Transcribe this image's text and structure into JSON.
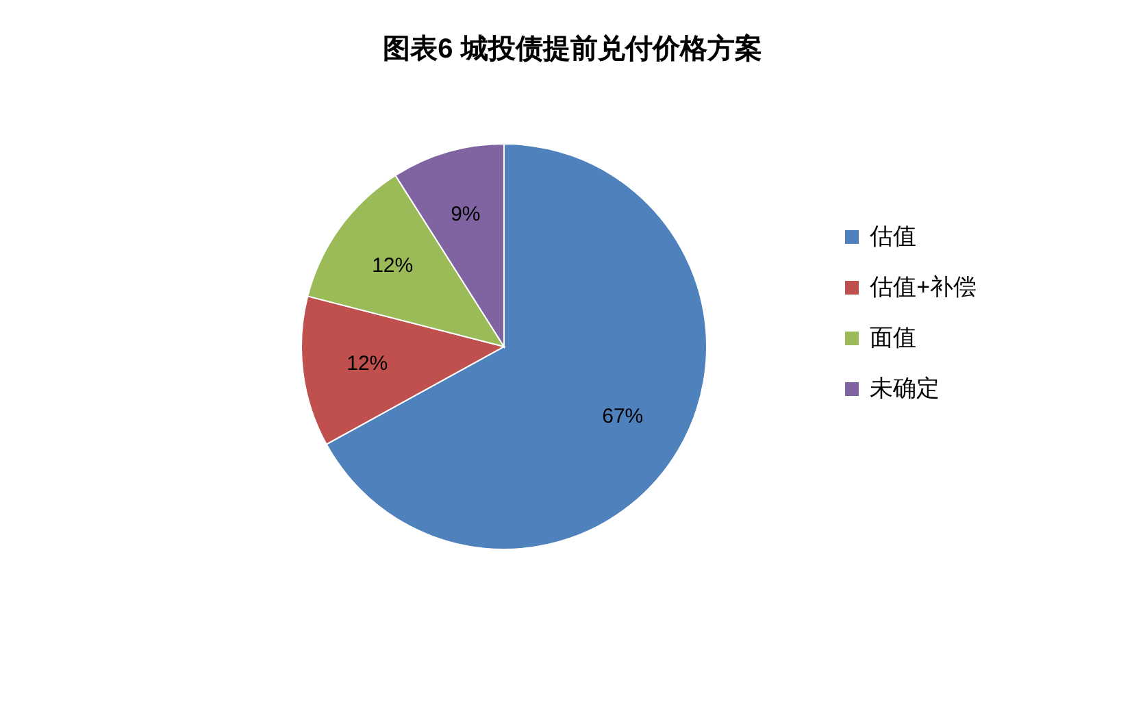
{
  "chart_data": {
    "type": "pie",
    "title": "图表6  城投债提前兑付价格方案",
    "categories": [
      "估值",
      "估值+补偿",
      "面值",
      "未确定"
    ],
    "values": [
      67,
      12,
      12,
      9
    ],
    "colors": [
      "#4f81bd",
      "#c0504d",
      "#9bbb59",
      "#8064a2"
    ],
    "value_labels": [
      "67%",
      "12%",
      "12%",
      "9%"
    ],
    "legend": "right"
  }
}
